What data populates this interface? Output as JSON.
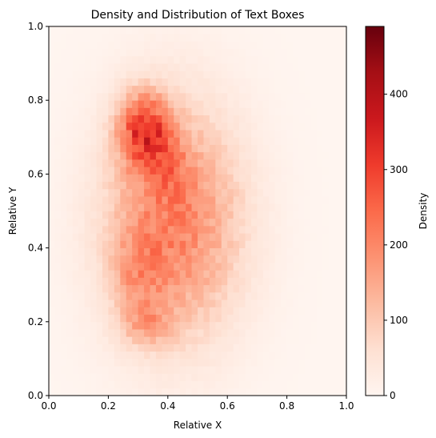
{
  "chart_data": {
    "type": "heatmap",
    "title": "Density and Distribution of Text Boxes",
    "xlabel": "Relative X",
    "ylabel": "Relative Y",
    "xlim": [
      0.0,
      1.0
    ],
    "ylim": [
      0.0,
      1.0
    ],
    "x_ticks": [
      "0.0",
      "0.2",
      "0.4",
      "0.6",
      "0.8",
      "1.0"
    ],
    "y_ticks": [
      "0.0",
      "0.2",
      "0.4",
      "0.6",
      "0.8",
      "1.0"
    ],
    "grid": false,
    "bins": [
      50,
      50
    ],
    "colormap": "Reds",
    "colorbar": {
      "label": "Density",
      "range": [
        0,
        490
      ],
      "ticks": [
        "0",
        "100",
        "200",
        "300",
        "400"
      ]
    },
    "density_peaks": [
      {
        "x": 0.32,
        "y": 0.72,
        "value": 490
      },
      {
        "x": 0.3,
        "y": 0.33,
        "value": 310
      },
      {
        "x": 0.33,
        "y": 0.19,
        "value": 330
      }
    ]
  }
}
